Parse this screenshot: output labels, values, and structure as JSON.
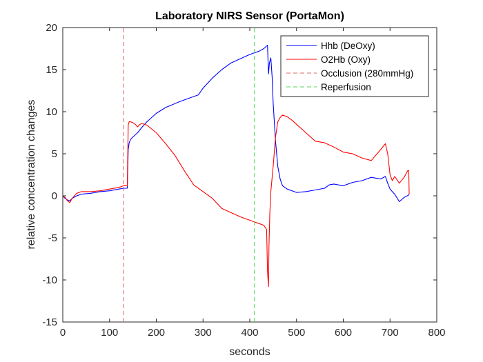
{
  "chart_data": {
    "type": "line",
    "title": "Laboratory NIRS Sensor (PortaMon)",
    "xlabel": "seconds",
    "ylabel": "relative concentration changes",
    "xlim": [
      0,
      800
    ],
    "ylim": [
      -15,
      20
    ],
    "xticks": [
      0,
      100,
      200,
      300,
      400,
      500,
      600,
      700,
      800
    ],
    "yticks": [
      -15,
      -10,
      -5,
      0,
      5,
      10,
      15,
      20
    ],
    "grid": false,
    "legend_position": "top-right",
    "series": [
      {
        "name": "Hhb (DeOxy)",
        "color": "#0000ff",
        "style": "solid",
        "x": [
          0,
          5,
          10,
          15,
          20,
          30,
          40,
          60,
          80,
          100,
          120,
          130,
          138,
          140,
          142,
          145,
          150,
          160,
          170,
          180,
          200,
          220,
          250,
          280,
          290,
          300,
          320,
          340,
          360,
          380,
          400,
          420,
          430,
          438,
          440,
          442,
          445,
          448,
          450,
          455,
          460,
          465,
          470,
          480,
          500,
          520,
          540,
          560,
          570,
          580,
          600,
          620,
          640,
          660,
          680,
          690,
          695,
          700,
          710,
          720,
          730,
          740,
          741
        ],
        "y": [
          0,
          -0.3,
          -0.5,
          -0.6,
          -0.3,
          0,
          0.2,
          0.3,
          0.5,
          0.6,
          0.8,
          0.9,
          0.9,
          5.5,
          6.3,
          6.7,
          7.0,
          7.5,
          8.2,
          8.8,
          9.8,
          10.5,
          11.2,
          11.8,
          12.0,
          12.8,
          14.0,
          15.0,
          15.8,
          16.3,
          16.8,
          17.2,
          17.5,
          17.9,
          14.5,
          15.8,
          16.4,
          14.0,
          11.0,
          6.5,
          3.5,
          2.0,
          1.2,
          0.8,
          0.4,
          0.5,
          0.7,
          0.9,
          1.3,
          1.4,
          1.2,
          1.6,
          1.8,
          2.2,
          2.0,
          2.3,
          1.5,
          0.8,
          0.2,
          -0.7,
          -0.2,
          0.1,
          0.2
        ]
      },
      {
        "name": "O2Hb (Oxy)",
        "color": "#ff0000",
        "style": "solid",
        "x": [
          0,
          5,
          10,
          15,
          20,
          30,
          40,
          60,
          80,
          100,
          120,
          130,
          138,
          140,
          142,
          145,
          150,
          155,
          160,
          165,
          170,
          180,
          200,
          220,
          240,
          260,
          280,
          300,
          320,
          340,
          360,
          380,
          400,
          420,
          430,
          436,
          438,
          440,
          441,
          443,
          445,
          450,
          455,
          460,
          465,
          470,
          480,
          490,
          500,
          520,
          540,
          560,
          580,
          600,
          620,
          640,
          660,
          680,
          690,
          695,
          700,
          705,
          710,
          720,
          730,
          738,
          740,
          741
        ],
        "y": [
          0,
          -0.2,
          -0.6,
          -0.8,
          -0.3,
          0.3,
          0.5,
          0.5,
          0.6,
          0.8,
          1.0,
          1.2,
          1.2,
          8.4,
          8.8,
          8.8,
          8.7,
          8.5,
          8.2,
          8.5,
          8.6,
          8.4,
          7.5,
          6.2,
          4.8,
          3.0,
          1.3,
          0.5,
          -0.3,
          -1.5,
          -2.0,
          -2.5,
          -2.9,
          -3.3,
          -3.5,
          -4.0,
          -9.0,
          -10.8,
          -6.0,
          -2.0,
          0.5,
          3.5,
          7.0,
          8.8,
          9.3,
          9.6,
          9.4,
          9.0,
          8.5,
          7.5,
          6.5,
          6.3,
          5.8,
          5.2,
          5.0,
          4.5,
          4.2,
          5.5,
          6.2,
          5.0,
          2.5,
          1.8,
          2.3,
          1.5,
          2.2,
          3.0,
          3.0,
          0.2
        ]
      },
      {
        "name": "Occlusion (280mmHg)",
        "color": "#dc6464",
        "style": "dashed",
        "x": [
          130,
          130
        ],
        "y": [
          -15,
          20
        ]
      },
      {
        "name": "Reperfusion",
        "color": "#4fd44f",
        "style": "dashed",
        "x": [
          410,
          410
        ],
        "y": [
          -15,
          20
        ]
      }
    ]
  }
}
